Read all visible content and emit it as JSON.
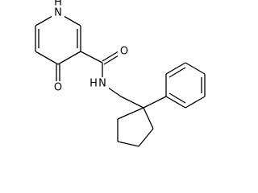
{
  "atoms": [
    {
      "label": "N",
      "hydrogen": "H"
    },
    {
      "label": "O"
    },
    {
      "label": "O"
    },
    {
      "label": "N",
      "hydrogen": "H"
    }
  ]
}
